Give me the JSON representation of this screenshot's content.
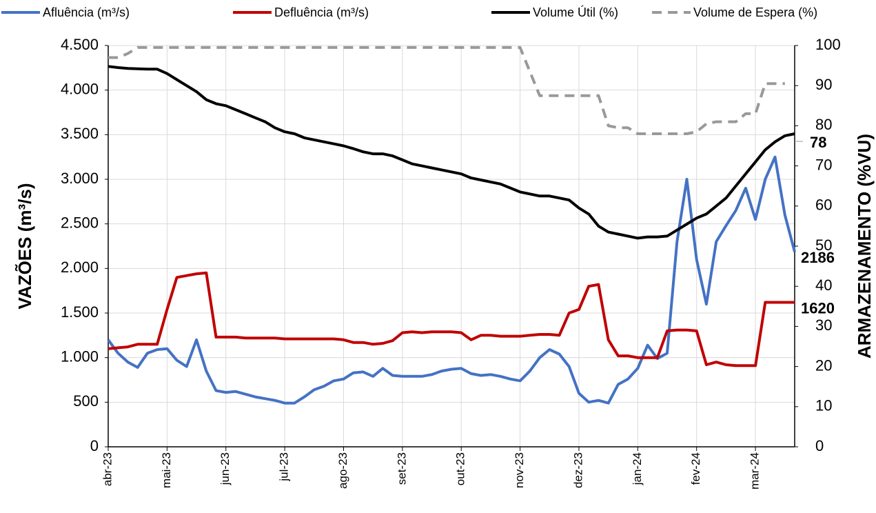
{
  "chart_data": {
    "type": "line",
    "y_label": "VAZÕES (m³/s)",
    "y2_label": "ARMAZENAMENTO (%VU)",
    "categories": [
      "abr-23",
      null,
      null,
      null,
      null,
      null,
      "mai-23",
      null,
      null,
      null,
      null,
      null,
      "jun-23",
      null,
      null,
      null,
      null,
      null,
      "jul-23",
      null,
      null,
      null,
      null,
      null,
      "ago-23",
      null,
      null,
      null,
      null,
      null,
      "set-23",
      null,
      null,
      null,
      null,
      null,
      "out-23",
      null,
      null,
      null,
      null,
      null,
      "nov-23",
      null,
      null,
      null,
      null,
      null,
      "dez-23",
      null,
      null,
      null,
      null,
      null,
      "jan-24",
      null,
      null,
      null,
      null,
      null,
      "fev-24",
      null,
      null,
      null,
      null,
      null,
      "mar-24",
      null,
      null,
      null,
      null
    ],
    "ylim": [
      0,
      4500
    ],
    "yticks": [
      0,
      500,
      {
        "value": 1000,
        "label": "1.000"
      },
      {
        "value": 1500,
        "label": "1.500"
      },
      {
        "value": 2000,
        "label": "2.000"
      },
      {
        "value": 2500,
        "label": "2.500"
      },
      {
        "value": 3000,
        "label": "3.000"
      },
      {
        "value": 3500,
        "label": "3.500"
      },
      {
        "value": 4000,
        "label": "4.000"
      },
      {
        "value": 4500,
        "label": "4.500"
      }
    ],
    "y2lim": [
      0,
      100
    ],
    "y2ticks": [
      0,
      10,
      20,
      30,
      40,
      50,
      60,
      70,
      80,
      90,
      100
    ],
    "grid": true,
    "series": [
      {
        "name": "Afluência (m³/s)",
        "color": "#4472c4",
        "values": [
          1200,
          1050,
          950,
          890,
          1050,
          1090,
          1100,
          970,
          900,
          1200,
          850,
          630,
          610,
          620,
          590,
          560,
          540,
          520,
          490,
          490,
          560,
          640,
          680,
          740,
          760,
          830,
          840,
          790,
          880,
          800,
          790,
          790,
          790,
          810,
          850,
          870,
          880,
          820,
          800,
          810,
          790,
          760,
          740,
          850,
          1000,
          1090,
          1040,
          900,
          600,
          500,
          520,
          490,
          700,
          760,
          880,
          1140,
          990,
          1050,
          2300,
          3000,
          2100,
          1600,
          2300,
          2480,
          2650,
          2900,
          2550,
          3000,
          3250,
          2600,
          2186
        ]
      },
      {
        "name": "Defluência (m³/s)",
        "color": "#c00000",
        "values": [
          1100,
          1110,
          1120,
          1150,
          1150,
          1150,
          1540,
          1900,
          1920,
          1940,
          1950,
          1230,
          1230,
          1230,
          1220,
          1220,
          1220,
          1220,
          1210,
          1210,
          1210,
          1210,
          1210,
          1210,
          1200,
          1170,
          1170,
          1150,
          1160,
          1190,
          1280,
          1290,
          1280,
          1290,
          1290,
          1290,
          1280,
          1200,
          1250,
          1250,
          1240,
          1240,
          1240,
          1250,
          1260,
          1260,
          1250,
          1500,
          1540,
          1800,
          1820,
          1200,
          1020,
          1020,
          1000,
          1000,
          1000,
          1300,
          1310,
          1310,
          1300,
          920,
          950,
          920,
          910,
          910,
          910,
          1620,
          1620,
          1620,
          1620
        ]
      },
      {
        "name": "Volume Útil (%)",
        "color": "#000000",
        "axis": "y2",
        "values": [
          94.8,
          94.5,
          94.3,
          94.2,
          94.1,
          94.1,
          93,
          91.5,
          90,
          88.5,
          86.5,
          85.5,
          85,
          84,
          83,
          82,
          81,
          79.5,
          78.5,
          78,
          77,
          76.5,
          76,
          75.5,
          75,
          74.3,
          73.5,
          73,
          73,
          72.5,
          71.5,
          70.5,
          70,
          69.5,
          69,
          68.5,
          68,
          67,
          66.5,
          66,
          65.5,
          64.5,
          63.5,
          63,
          62.5,
          62.5,
          62,
          61.5,
          59.5,
          58,
          55,
          53.5,
          53,
          52.5,
          52,
          52.3,
          52.3,
          52.5,
          54,
          55.5,
          57,
          58,
          60,
          62,
          65,
          68,
          71,
          74,
          76,
          77.5,
          78
        ]
      },
      {
        "name": "Volume de Espera (%)",
        "color": "#999999",
        "axis": "y2",
        "dashed": true,
        "values": [
          97,
          97,
          98,
          99.5,
          99.5,
          99.5,
          99.5,
          99.5,
          99.5,
          99.5,
          99.5,
          99.5,
          99.5,
          99.5,
          99.5,
          99.5,
          99.5,
          99.5,
          99.5,
          99.5,
          99.5,
          99.5,
          99.5,
          99.5,
          99.5,
          99.5,
          99.5,
          99.5,
          99.5,
          99.5,
          99.5,
          99.5,
          99.5,
          99.5,
          99.5,
          99.5,
          99.5,
          99.5,
          99.5,
          99.5,
          99.5,
          99.5,
          99.5,
          93.5,
          87.5,
          87.5,
          87.5,
          87.5,
          87.5,
          87.5,
          87.5,
          80,
          79.5,
          79.5,
          78,
          78,
          78,
          78,
          78,
          78,
          78.5,
          80.5,
          81,
          81,
          81,
          83,
          83,
          90.5,
          90.5,
          90.5,
          null
        ]
      }
    ]
  }
}
